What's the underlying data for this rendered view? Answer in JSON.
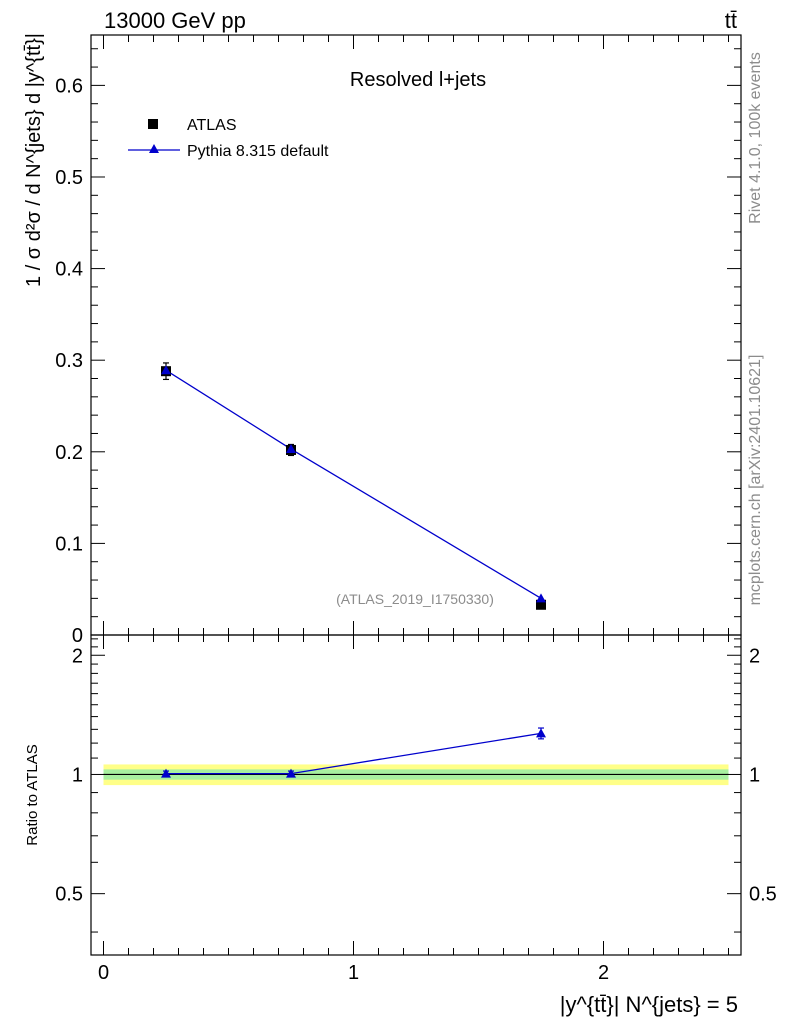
{
  "header": {
    "energy_label": "13000 GeV pp",
    "process_label": "tt̄"
  },
  "side_labels": {
    "rivet": "Rivet 4.1.0,  100k events",
    "mcplots": "mcplots.cern.ch [arXiv:2401.10621]"
  },
  "chart_data": [
    {
      "type": "line",
      "panel": "main",
      "title": "Resolved l+jets",
      "analysis_tag": "(ATLAS_2019_I1750330)",
      "ylabel": "1 / σ d²σ / d N^{jets} d |y^{tt̄}|",
      "xlabel": "|y^{tt̄}| N^{jets} = 5",
      "xlim": [
        -0.05,
        2.55
      ],
      "ylim": [
        0,
        0.655
      ],
      "y_ticks": [
        0,
        0.1,
        0.2,
        0.3,
        0.4,
        0.5,
        0.6
      ],
      "y_tick_labels": [
        "0",
        "0.1",
        "0.2",
        "0.3",
        "0.4",
        "0.5",
        "0.6"
      ],
      "x_ticks": [
        0,
        1,
        2
      ],
      "x_tick_labels": [
        "0",
        "1",
        "2"
      ],
      "legend_position": "top-left",
      "series": [
        {
          "name": "ATLAS",
          "marker": "square",
          "color": "#000000",
          "x": [
            0.25,
            0.75,
            1.75
          ],
          "y": [
            0.288,
            0.202,
            0.033
          ],
          "yerr": [
            0.009,
            0.006,
            0.003
          ]
        },
        {
          "name": "Pythia 8.315 default",
          "marker": "triangle",
          "color": "#0000cc",
          "x": [
            0.25,
            0.75,
            1.75
          ],
          "y": [
            0.289,
            0.203,
            0.04
          ],
          "yerr": [
            0.003,
            0.003,
            0.002
          ]
        }
      ]
    },
    {
      "type": "line",
      "panel": "ratio",
      "ylabel": "Ratio to ATLAS",
      "xlim": [
        -0.05,
        2.55
      ],
      "ylim": [
        0.35,
        2.25
      ],
      "y_ticks": [
        0.5,
        1,
        2
      ],
      "y_tick_labels": [
        "0.5",
        "1",
        "2"
      ],
      "reference_line": 1.0,
      "band_inner": [
        0.97,
        1.03
      ],
      "band_outer": [
        0.94,
        1.06
      ],
      "series": [
        {
          "name": "Pythia 8.315 default",
          "color": "#0000cc",
          "x": [
            0.25,
            0.75,
            1.75
          ],
          "y": [
            1.005,
            1.005,
            1.27
          ],
          "yerr": [
            0.015,
            0.015,
            0.04
          ]
        }
      ]
    }
  ]
}
